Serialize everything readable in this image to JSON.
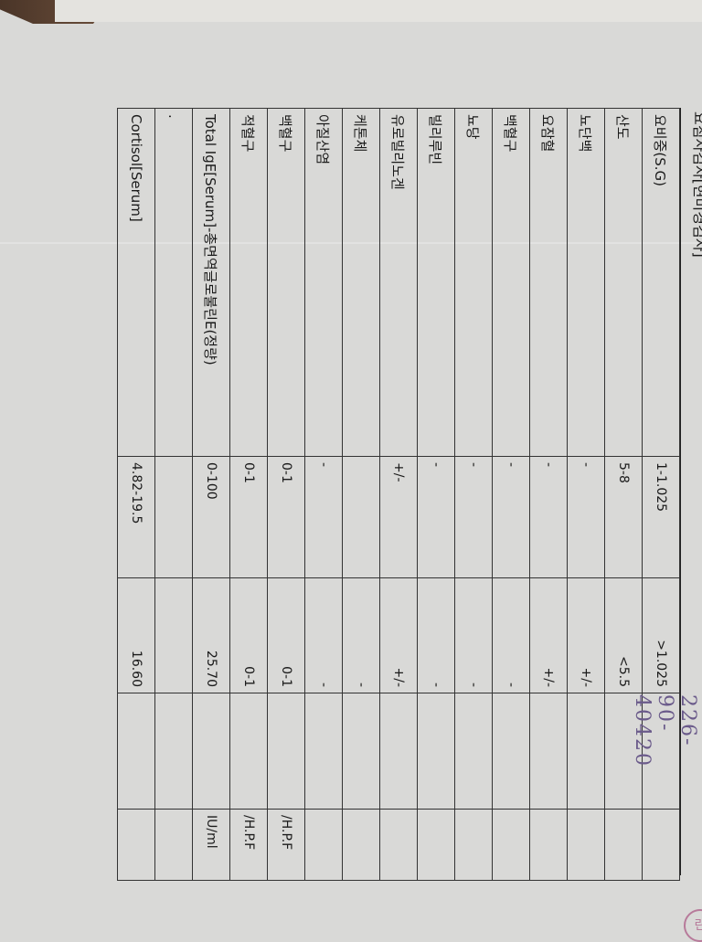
{
  "document": {
    "section_title": "요침사검사[현미경검사]",
    "rows": [
      {
        "test": "요비중(S.G)",
        "reference": "1-1.025",
        "result": ">1.025",
        "unit": ""
      },
      {
        "test": "산도",
        "reference": "5-8",
        "result": "<5.5",
        "unit": ""
      },
      {
        "test": "뇨단백",
        "reference": "-",
        "result": "+/-",
        "unit": ""
      },
      {
        "test": "요잠혈",
        "reference": "-",
        "result": "+/-",
        "unit": ""
      },
      {
        "test": "백혈구",
        "reference": "-",
        "result": "-",
        "unit": ""
      },
      {
        "test": "뇨당",
        "reference": "-",
        "result": "-",
        "unit": ""
      },
      {
        "test": "빌리루빈",
        "reference": "-",
        "result": "-",
        "unit": ""
      },
      {
        "test": "유로빌리노겐",
        "reference": "+/-",
        "result": "+/-",
        "unit": ""
      },
      {
        "test": "케톤체",
        "reference": "",
        "result": "-",
        "unit": ""
      },
      {
        "test": "아질산염",
        "reference": "-",
        "result": "-",
        "unit": ""
      },
      {
        "test": "백혈구",
        "reference": "0-1",
        "result": "0-1",
        "unit": "/H.P.F"
      },
      {
        "test": "적혈구",
        "reference": "0-1",
        "result": "0-1",
        "unit": "/H.P.F"
      },
      {
        "test": "Total IgE[Serum]-총면역글로불린E(정량)",
        "reference": "0-100",
        "result": "25.70",
        "unit": "IU/ml"
      },
      {
        "test": ".",
        "reference": "",
        "result": "",
        "unit": ""
      },
      {
        "test": "Cortisol[Serum]",
        "reference": "4.82-19.5",
        "result": "16.60",
        "unit": ""
      }
    ],
    "handwritten_number": "226-90-40420",
    "stamp_mark": "린"
  }
}
